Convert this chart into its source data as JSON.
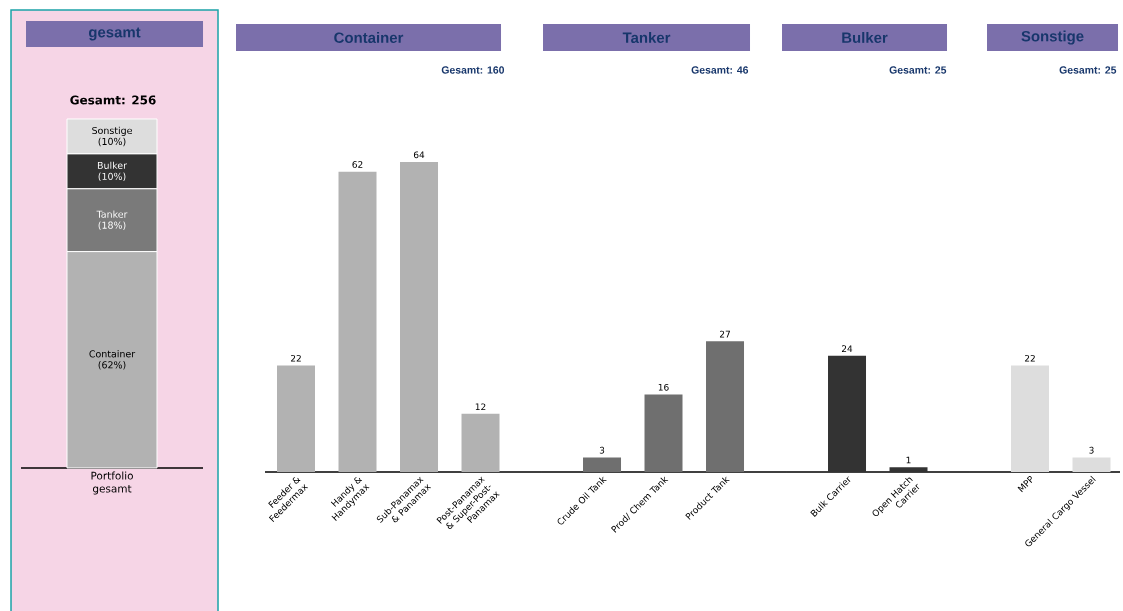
{
  "chart_data": [
    {
      "type": "bar",
      "title": "gesamt",
      "subtitle": "Gesamt: 256",
      "categories": [
        "Portfolio gesamt"
      ],
      "stacked": true,
      "tick_labels": "x",
      "series": [
        {
          "name": "Container",
          "color": "#b2b2b2",
          "values": [
            62
          ],
          "value_labels": [
            "(62%)"
          ]
        },
        {
          "name": "Tanker",
          "color": "#7a7a7a",
          "values": [
            18
          ],
          "value_labels": [
            "(18%)"
          ]
        },
        {
          "name": "Bulker",
          "color": "#333333",
          "values": [
            10
          ],
          "value_labels": [
            "(10%)"
          ]
        },
        {
          "name": "Sonstige",
          "color": "#dddddd",
          "values": [
            10
          ],
          "value_labels": [
            "(10%)"
          ]
        }
      ]
    },
    {
      "type": "bar",
      "title": "Container",
      "subtitle": "Gesamt: 160",
      "categories": [
        "Feeder & Feedermax",
        "Handy & Handymax",
        "Sub-Panamax & Panamax",
        "Post-Panamax & Super-Post-Panamax"
      ],
      "values": [
        22,
        62,
        64,
        12
      ],
      "color": "#b2b2b2",
      "data_labels": true,
      "tick_labels": "x"
    },
    {
      "type": "bar",
      "title": "Tanker",
      "subtitle": "Gesamt: 46",
      "categories": [
        "Crude Oil Tank",
        "Prod/ Chem Tank",
        "Product Tank"
      ],
      "values": [
        3,
        16,
        27
      ],
      "color": "#6f6f6f",
      "data_labels": true,
      "tick_labels": "x"
    },
    {
      "type": "bar",
      "title": "Bulker",
      "subtitle": "Gesamt: 25",
      "categories": [
        "Bulk Carrier",
        "Open Hatch Carrier"
      ],
      "values": [
        24,
        1
      ],
      "color": "#333333",
      "data_labels": true,
      "tick_labels": "x"
    },
    {
      "type": "bar",
      "title": "Sonstige",
      "subtitle": "Gesamt: 25",
      "categories": [
        "MPP",
        "General Cargo Vessel"
      ],
      "values": [
        22,
        3
      ],
      "color": "#dddddd",
      "data_labels": true,
      "tick_labels": "x"
    }
  ]
}
